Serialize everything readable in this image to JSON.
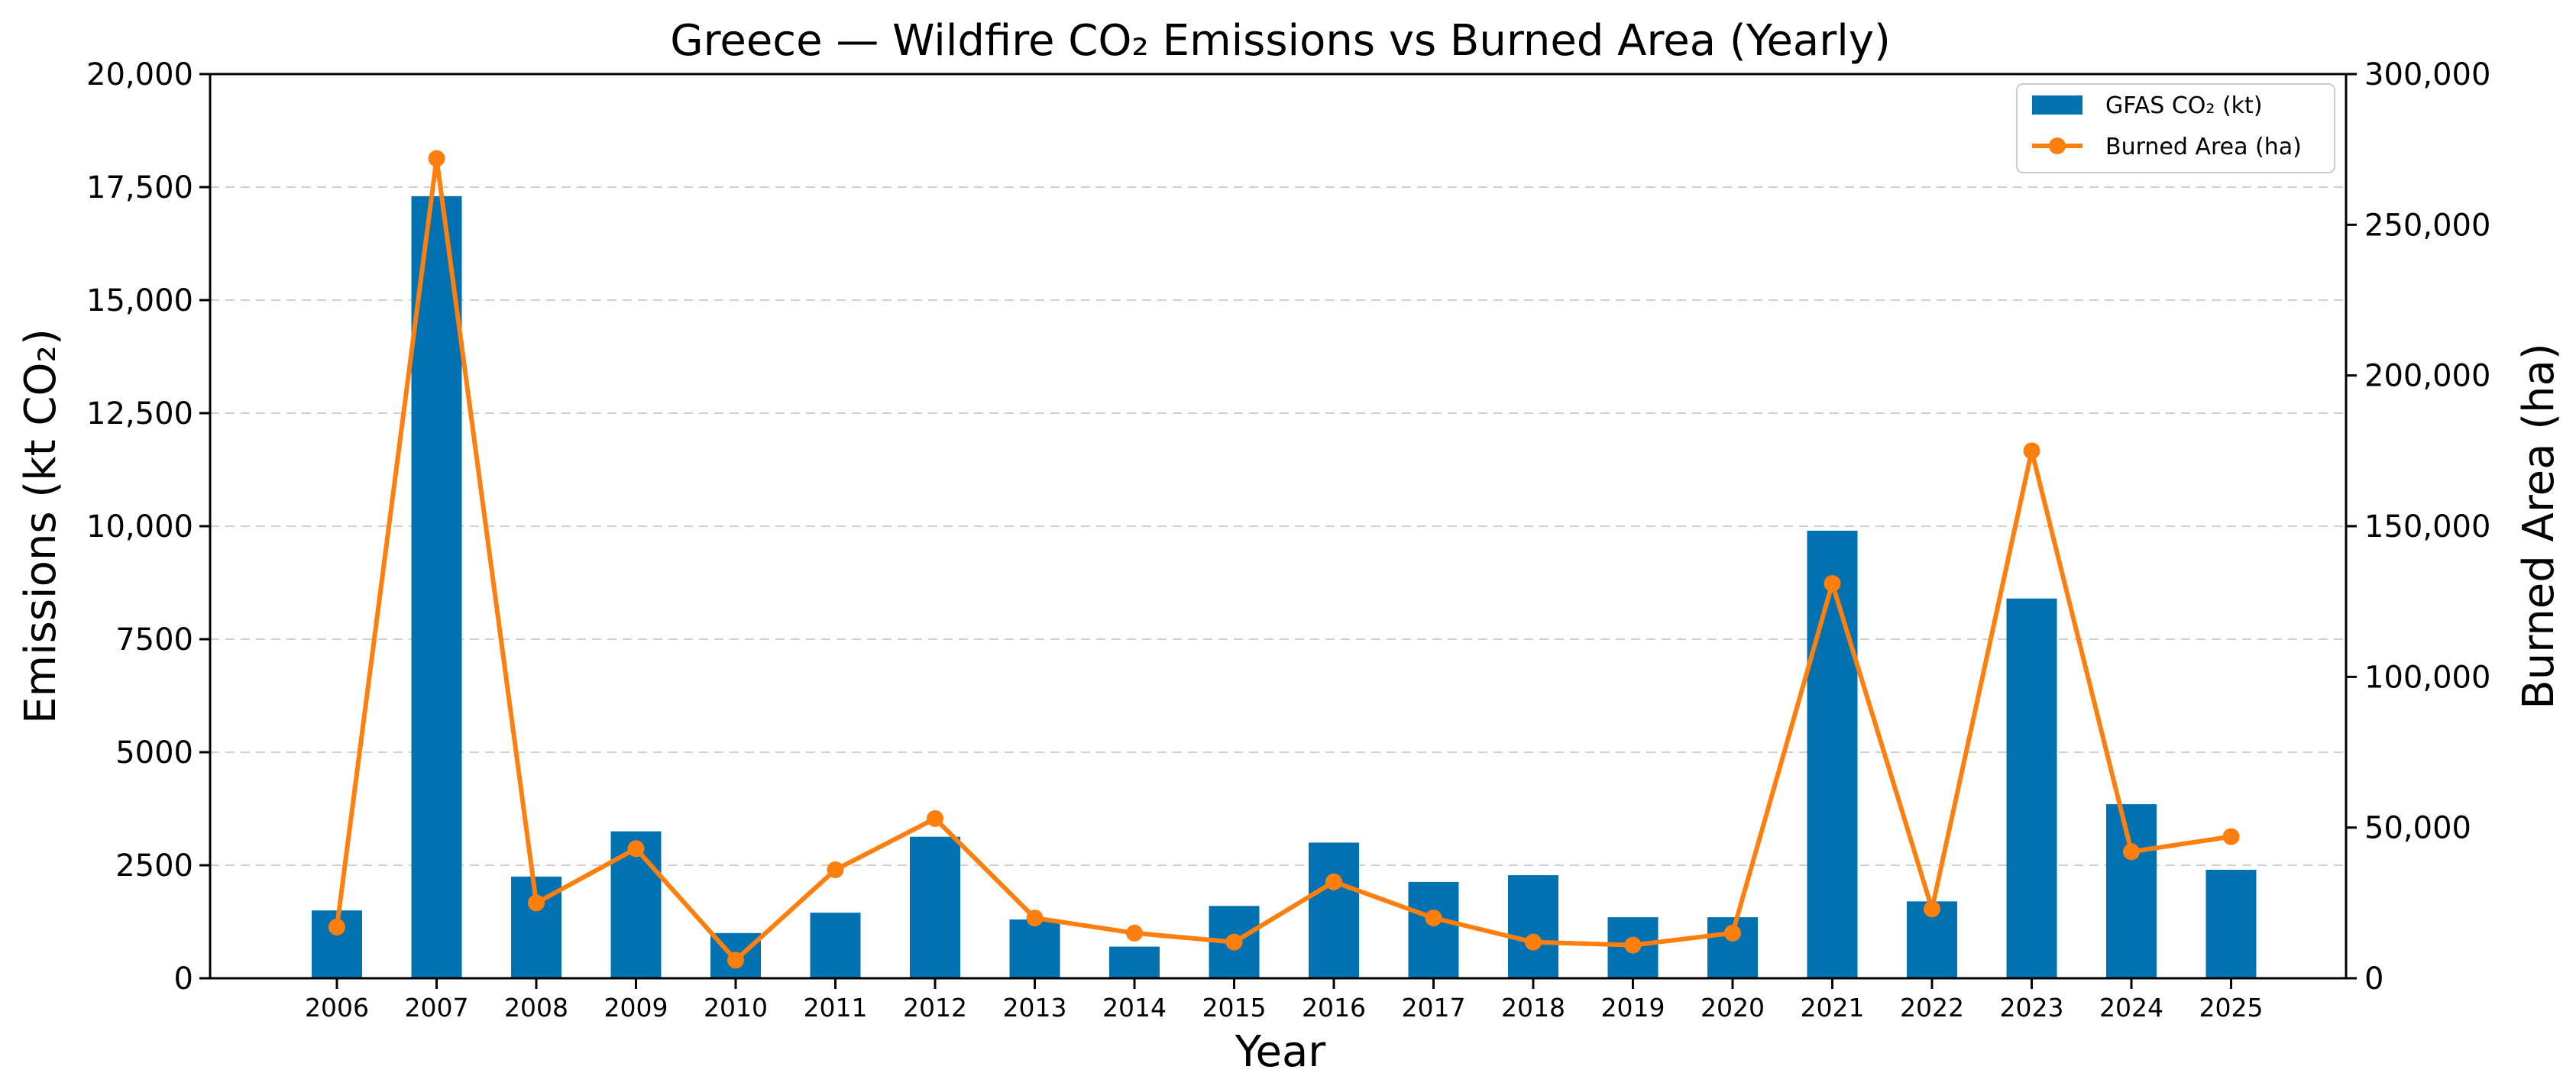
{
  "chart_data": {
    "type": "bar",
    "title": "Greece — Wildfire CO₂ Emissions vs Burned Area (Yearly)",
    "xlabel": "Year",
    "ylabel": "Emissions (kt CO₂)",
    "y2label": "Burned Area (ha)",
    "categories": [
      "2006",
      "2007",
      "2008",
      "2009",
      "2010",
      "2011",
      "2012",
      "2013",
      "2014",
      "2015",
      "2016",
      "2017",
      "2018",
      "2019",
      "2020",
      "2021",
      "2022",
      "2023",
      "2024",
      "2025"
    ],
    "series": [
      {
        "name": "GFAS CO₂ (kt)",
        "kind": "bar",
        "axis": "left",
        "color": "#0072b2",
        "values": [
          1500,
          17300,
          2250,
          3250,
          1000,
          1450,
          3130,
          1300,
          700,
          1600,
          3000,
          2130,
          2280,
          1350,
          1350,
          9900,
          1700,
          8400,
          3850,
          2400
        ]
      },
      {
        "name": "Burned Area (ha)",
        "kind": "line",
        "axis": "right",
        "color": "#ff7f0e",
        "values": [
          17000,
          272000,
          25000,
          43000,
          6000,
          36000,
          53000,
          20000,
          15000,
          12000,
          32000,
          20000,
          12000,
          11000,
          15000,
          131000,
          23000,
          175000,
          42000,
          47000
        ]
      }
    ],
    "ylim": [
      0,
      20000
    ],
    "y2lim": [
      0,
      300000
    ],
    "yticks": [
      "0",
      "2500",
      "5000",
      "7500",
      "10,000",
      "12,500",
      "15,000",
      "17,500",
      "20,000"
    ],
    "y2ticks": [
      "0",
      "50,000",
      "100,000",
      "150,000",
      "200,000",
      "250,000",
      "300,000"
    ],
    "grid": "horizontal dashed",
    "legend": "top-right"
  }
}
